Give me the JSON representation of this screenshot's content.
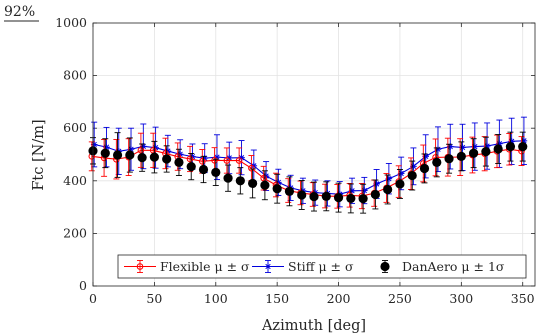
{
  "corner_label": "92%",
  "chart_data": {
    "type": "line",
    "xlabel": "Azimuth [deg]",
    "ylabel": "Ftc [N/m]",
    "xlim": [
      0,
      360
    ],
    "ylim": [
      0,
      1000
    ],
    "xticks": [
      0,
      50,
      100,
      150,
      200,
      250,
      300,
      350
    ],
    "yticks": [
      0,
      200,
      400,
      600,
      800,
      1000
    ],
    "grid": true,
    "legend_placement": "bottom",
    "x": [
      0,
      10,
      20,
      30,
      40,
      50,
      60,
      70,
      80,
      90,
      100,
      110,
      120,
      130,
      140,
      150,
      160,
      170,
      180,
      190,
      200,
      210,
      220,
      230,
      240,
      250,
      260,
      270,
      280,
      290,
      300,
      310,
      320,
      330,
      340,
      350
    ],
    "series": [
      {
        "name": "Flexible μ ± σ",
        "color": "#ff0000",
        "marker": "circle-open",
        "mean": [
          493,
          487,
          482,
          490,
          516,
          516,
          504,
          492,
          483,
          474,
          478,
          477,
          477,
          448,
          410,
          384,
          363,
          354,
          348,
          342,
          341,
          345,
          342,
          353,
          373,
          397,
          427,
          466,
          489,
          490,
          490,
          498,
          503,
          512,
          520,
          513
        ],
        "std": [
          55,
          70,
          75,
          70,
          65,
          65,
          58,
          52,
          48,
          45,
          48,
          48,
          48,
          48,
          45,
          45,
          45,
          45,
          45,
          45,
          45,
          45,
          48,
          50,
          55,
          60,
          60,
          70,
          70,
          72,
          70,
          68,
          65,
          62,
          60,
          55
        ]
      },
      {
        "name": "Stiff μ ± σ",
        "color": "#0000dd",
        "marker": "star",
        "mean": [
          538,
          528,
          512,
          520,
          531,
          526,
          513,
          501,
          492,
          486,
          490,
          487,
          488,
          457,
          418,
          394,
          373,
          362,
          355,
          352,
          349,
          362,
          363,
          388,
          408,
          428,
          455,
          493,
          520,
          530,
          527,
          530,
          532,
          541,
          550,
          552
        ],
        "std": [
          85,
          75,
          88,
          80,
          85,
          78,
          60,
          55,
          48,
          55,
          85,
          60,
          65,
          60,
          55,
          50,
          48,
          48,
          48,
          48,
          48,
          48,
          50,
          55,
          58,
          62,
          70,
          82,
          85,
          85,
          88,
          90,
          88,
          90,
          88,
          90
        ]
      },
      {
        "name": "DanAero μ ± 1σ",
        "color": "#000000",
        "marker": "circle-filled",
        "mean": [
          514,
          505,
          498,
          498,
          488,
          490,
          483,
          470,
          454,
          443,
          432,
          410,
          400,
          390,
          383,
          370,
          360,
          346,
          340,
          341,
          336,
          333,
          332,
          348,
          367,
          388,
          420,
          447,
          470,
          484,
          493,
          505,
          511,
          521,
          530,
          530
        ],
        "std": [
          50,
          55,
          85,
          65,
          52,
          60,
          50,
          50,
          50,
          50,
          50,
          50,
          50,
          55,
          55,
          55,
          55,
          55,
          55,
          55,
          55,
          55,
          55,
          55,
          55,
          55,
          55,
          55,
          55,
          55,
          55,
          55,
          55,
          55,
          55,
          55
        ]
      }
    ]
  }
}
